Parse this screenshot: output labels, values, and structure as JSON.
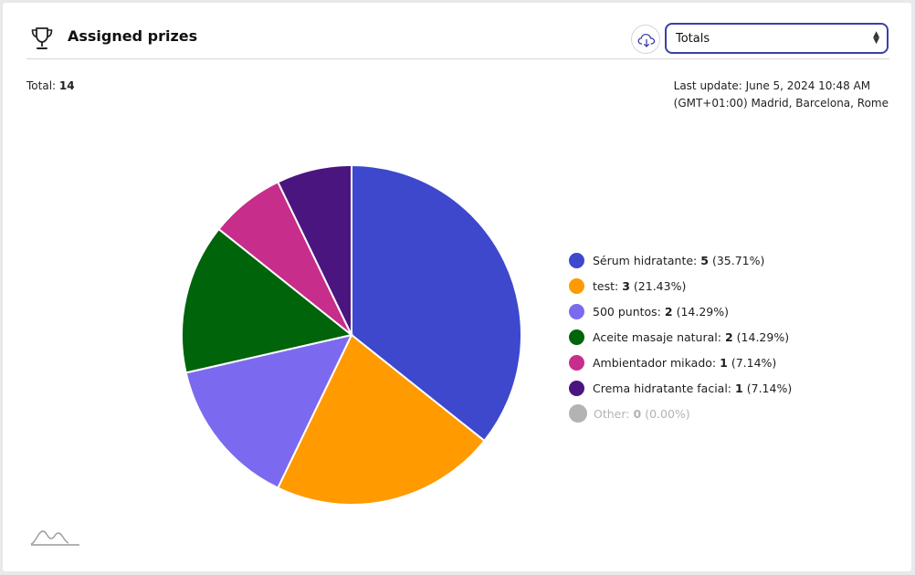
{
  "header": {
    "title": "Assigned prizes",
    "trophy_icon": "trophy-icon",
    "download_icon": "cloud-download-icon",
    "select_value": "Totals"
  },
  "summary": {
    "total_label": "Total:",
    "total_value": "14",
    "last_update_line1": "Last update: June 5, 2024 10:48 AM",
    "last_update_line2": "(GMT+01:00) Madrid, Barcelona, Rome"
  },
  "chart_data": {
    "type": "pie",
    "title": "",
    "slices": [
      {
        "label": "Sérum hidratante",
        "value": 5,
        "percent": "35.71%",
        "color": "#3d48cc"
      },
      {
        "label": "test",
        "value": 3,
        "percent": "21.43%",
        "color": "#ff9a00"
      },
      {
        "label": "500 puntos",
        "value": 2,
        "percent": "14.29%",
        "color": "#7b6af0"
      },
      {
        "label": "Aceite masaje natural",
        "value": 2,
        "percent": "14.29%",
        "color": "#00640a"
      },
      {
        "label": "Ambientador mikado",
        "value": 1,
        "percent": "7.14%",
        "color": "#c72d8b"
      },
      {
        "label": "Crema hidratante facial",
        "value": 1,
        "percent": "7.14%",
        "color": "#4b1580"
      },
      {
        "label": "Other",
        "value": 0,
        "percent": "0.00%",
        "color": "#b3b3b3"
      }
    ],
    "legend_position": "right"
  },
  "footer": {
    "logo_icon": "wave-logo-icon"
  }
}
